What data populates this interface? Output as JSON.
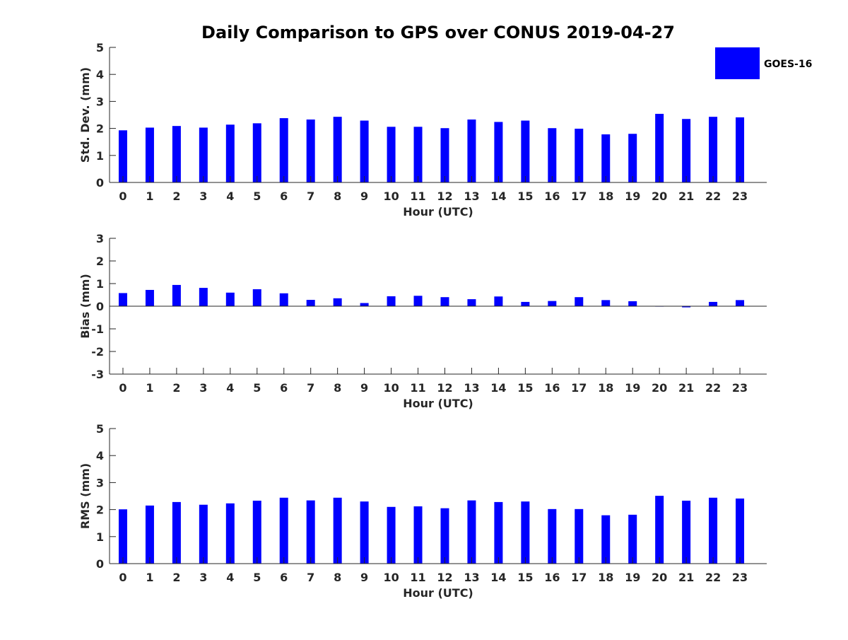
{
  "title": "Daily Comparison to GPS over CONUS 2019-04-27",
  "legend": {
    "label": "GOES-16",
    "position": "top-right"
  },
  "colors": {
    "bar": "#0000ff",
    "axis": "#262626",
    "text": "#262626"
  },
  "chart_data": [
    {
      "type": "bar",
      "ylabel": "Std. Dev. (mm)",
      "xlabel": "Hour (UTC)",
      "ylim": [
        0,
        5
      ],
      "yticks": [
        0,
        1,
        2,
        3,
        4,
        5
      ],
      "categories": [
        "0",
        "1",
        "2",
        "3",
        "4",
        "5",
        "6",
        "7",
        "8",
        "9",
        "10",
        "11",
        "12",
        "13",
        "14",
        "15",
        "16",
        "17",
        "18",
        "19",
        "20",
        "21",
        "22",
        "23"
      ],
      "series": [
        {
          "name": "GOES-16",
          "values": [
            1.93,
            2.03,
            2.09,
            2.03,
            2.14,
            2.19,
            2.38,
            2.33,
            2.43,
            2.29,
            2.06,
            2.06,
            2.01,
            2.33,
            2.24,
            2.29,
            2.01,
            1.99,
            1.78,
            1.8,
            2.54,
            2.35,
            2.43,
            2.41
          ]
        }
      ],
      "grid": false
    },
    {
      "type": "bar",
      "ylabel": "Bias (mm)",
      "xlabel": "Hour (UTC)",
      "ylim": [
        -3,
        3
      ],
      "yticks": [
        -3,
        -2,
        -1,
        0,
        1,
        2,
        3
      ],
      "categories": [
        "0",
        "1",
        "2",
        "3",
        "4",
        "5",
        "6",
        "7",
        "8",
        "9",
        "10",
        "11",
        "12",
        "13",
        "14",
        "15",
        "16",
        "17",
        "18",
        "19",
        "20",
        "21",
        "22",
        "23"
      ],
      "series": [
        {
          "name": "GOES-16",
          "values": [
            0.58,
            0.72,
            0.94,
            0.81,
            0.6,
            0.75,
            0.57,
            0.28,
            0.35,
            0.14,
            0.44,
            0.46,
            0.4,
            0.31,
            0.43,
            0.19,
            0.23,
            0.4,
            0.27,
            0.22,
            0.0,
            -0.05,
            0.19,
            0.27
          ]
        }
      ],
      "grid": false
    },
    {
      "type": "bar",
      "ylabel": "RMS (mm)",
      "xlabel": "Hour (UTC)",
      "ylim": [
        0,
        5
      ],
      "yticks": [
        0,
        1,
        2,
        3,
        4,
        5
      ],
      "categories": [
        "0",
        "1",
        "2",
        "3",
        "4",
        "5",
        "6",
        "7",
        "8",
        "9",
        "10",
        "11",
        "12",
        "13",
        "14",
        "15",
        "16",
        "17",
        "18",
        "19",
        "20",
        "21",
        "22",
        "23"
      ],
      "series": [
        {
          "name": "GOES-16",
          "values": [
            2.01,
            2.15,
            2.28,
            2.18,
            2.23,
            2.33,
            2.44,
            2.34,
            2.44,
            2.3,
            2.1,
            2.12,
            2.05,
            2.34,
            2.28,
            2.3,
            2.02,
            2.02,
            1.79,
            1.81,
            2.51,
            2.33,
            2.44,
            2.41
          ]
        }
      ],
      "grid": false
    }
  ]
}
